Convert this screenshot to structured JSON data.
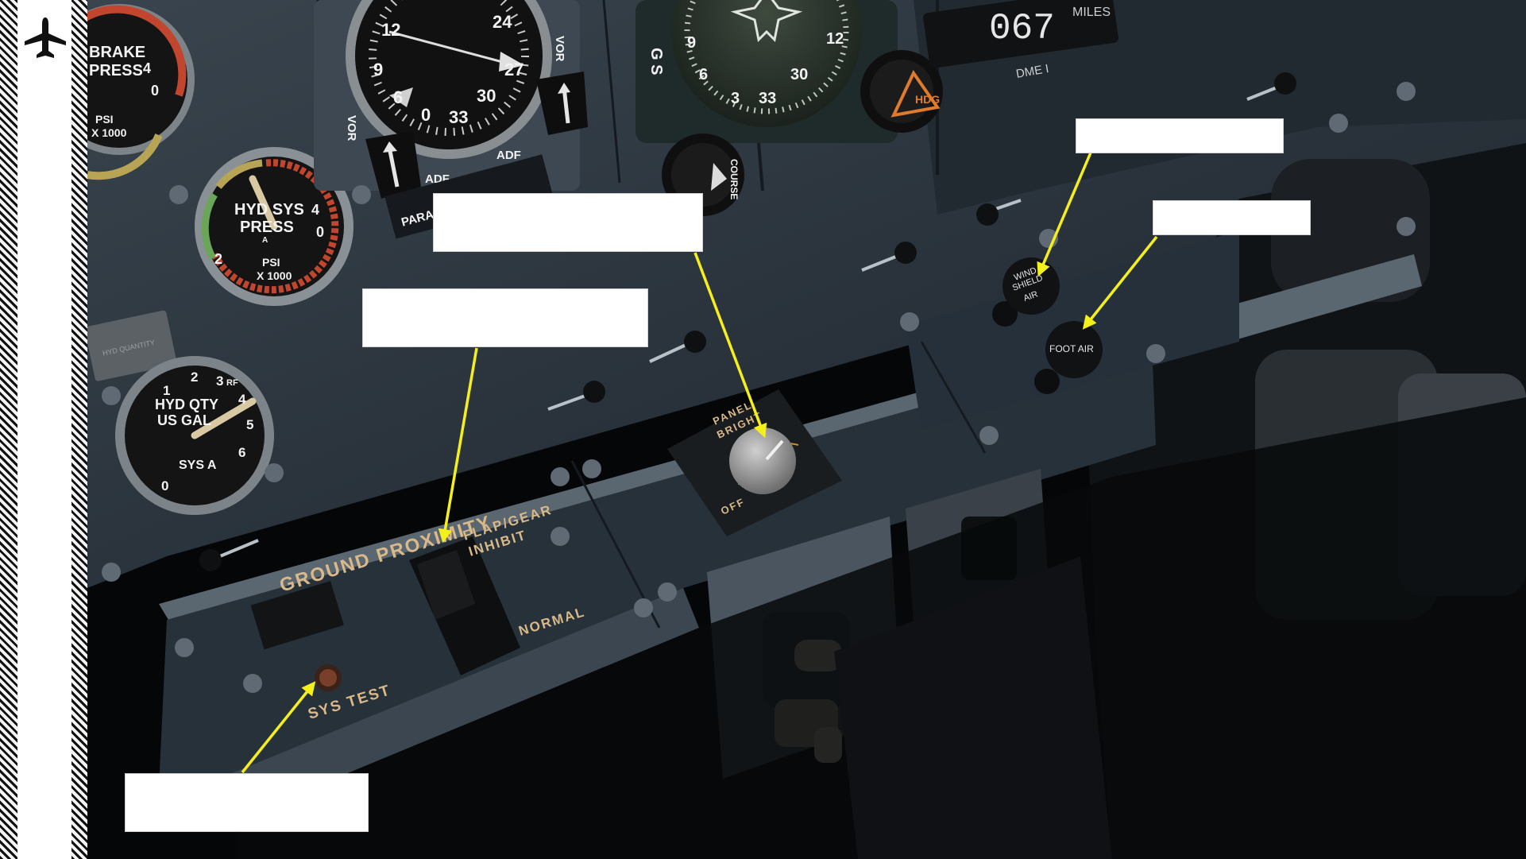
{
  "colors": {
    "panel": "#2b3640",
    "arrow": "#f5ef1a",
    "placard_text": "#d9b98a",
    "callout_fill": "#ffffff"
  },
  "sidebar": {
    "icon": "airplane-icon"
  },
  "gauges": {
    "brake_press": {
      "label_line1": "BRAKE",
      "label_line2": "PRESS",
      "unit_line1": "PSI",
      "unit_line2": "X 1000",
      "ticks": [
        "4",
        "0"
      ]
    },
    "hyd_sys_press": {
      "label_line1": "HYD SYS",
      "label_line2": "PRESS",
      "unit_line1": "PSI",
      "unit_line2": "X 1000",
      "sub": "A",
      "ticks": [
        "2",
        "4",
        "0"
      ]
    },
    "hyd_qty": {
      "label_line1": "HYD QTY",
      "label_line2": "US GAL",
      "sys": "SYS A",
      "ticks": [
        "0",
        "1",
        "2",
        "3",
        "4",
        "5",
        "6"
      ],
      "rf": "RF"
    },
    "rmi": {
      "vor_left": "VOR",
      "vor_right": "VOR",
      "adf_left": "ADF",
      "adf_right": "ADF",
      "numbers": [
        "12",
        "24",
        "9",
        "27",
        "6",
        "30",
        "33",
        "0"
      ]
    },
    "hsi": {
      "gs": "G S",
      "numbers": [
        "9",
        "12",
        "6",
        "3",
        "33",
        "30"
      ]
    },
    "dme": {
      "readout": "067",
      "unit": "MILES",
      "label": "DME I"
    }
  },
  "placards": {
    "paral_needles": "PARAL    NEEDLES",
    "course": "COURSE",
    "hdg": "HDG",
    "ground_proximity": "GROUND PROXIMITY",
    "flap_gear_1": "FLAP/GEAR",
    "flap_gear_2": "INHIBIT",
    "normal": "NORMAL",
    "sys_test": "SYS TEST",
    "panel_bright_1": "PANEL",
    "panel_bright_2": "BRIGHT",
    "off": "OFF",
    "wind_1": "WIND",
    "wind_2": "SHIELD",
    "wind_3": "AIR",
    "foot_air": "FOOT AIR",
    "hyd_qty_tag": "HYD QUANTITY"
  }
}
